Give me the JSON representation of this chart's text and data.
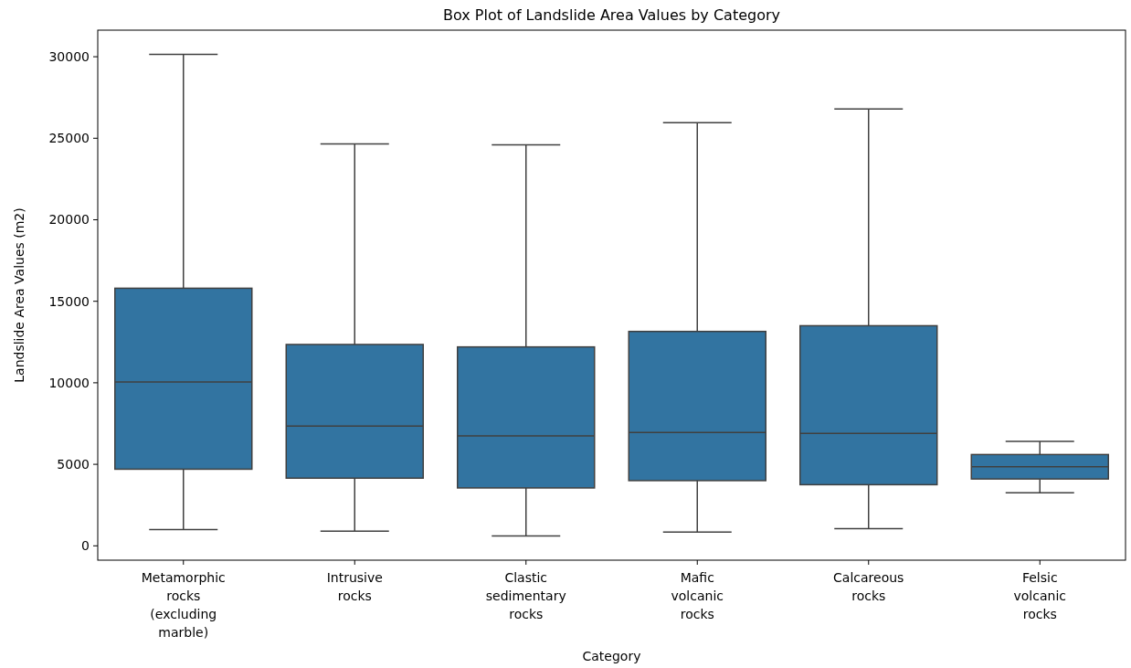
{
  "chart_data": {
    "type": "box",
    "title": "Box Plot of Landslide Area Values by Category",
    "xlabel": "Category",
    "ylabel": "Landslide Area Values (m2)",
    "categories": [
      "Metamorphic rocks (excluding marble)",
      "Intrusive rocks",
      "Clastic sedimentary rocks",
      "Mafic volcanic rocks",
      "Calcareous rocks",
      "Felsic volcanic rocks"
    ],
    "color": "#3274a1",
    "boxes": [
      {
        "low": 1000,
        "q1": 4700,
        "median": 10050,
        "q3": 15800,
        "high": 30150
      },
      {
        "low": 900,
        "q1": 4150,
        "median": 7350,
        "q3": 12350,
        "high": 24650
      },
      {
        "low": 600,
        "q1": 3550,
        "median": 6750,
        "q3": 12200,
        "high": 24600
      },
      {
        "low": 850,
        "q1": 4000,
        "median": 6950,
        "q3": 13150,
        "high": 25950
      },
      {
        "low": 1050,
        "q1": 3750,
        "median": 6900,
        "q3": 13500,
        "high": 26800
      },
      {
        "low": 3250,
        "q1": 4100,
        "median": 4850,
        "q3": 5600,
        "high": 6400
      }
    ],
    "ylim": [
      -880,
      31630
    ],
    "yticks": [
      0,
      5000,
      10000,
      15000,
      20000,
      25000,
      30000
    ],
    "grid": false
  }
}
